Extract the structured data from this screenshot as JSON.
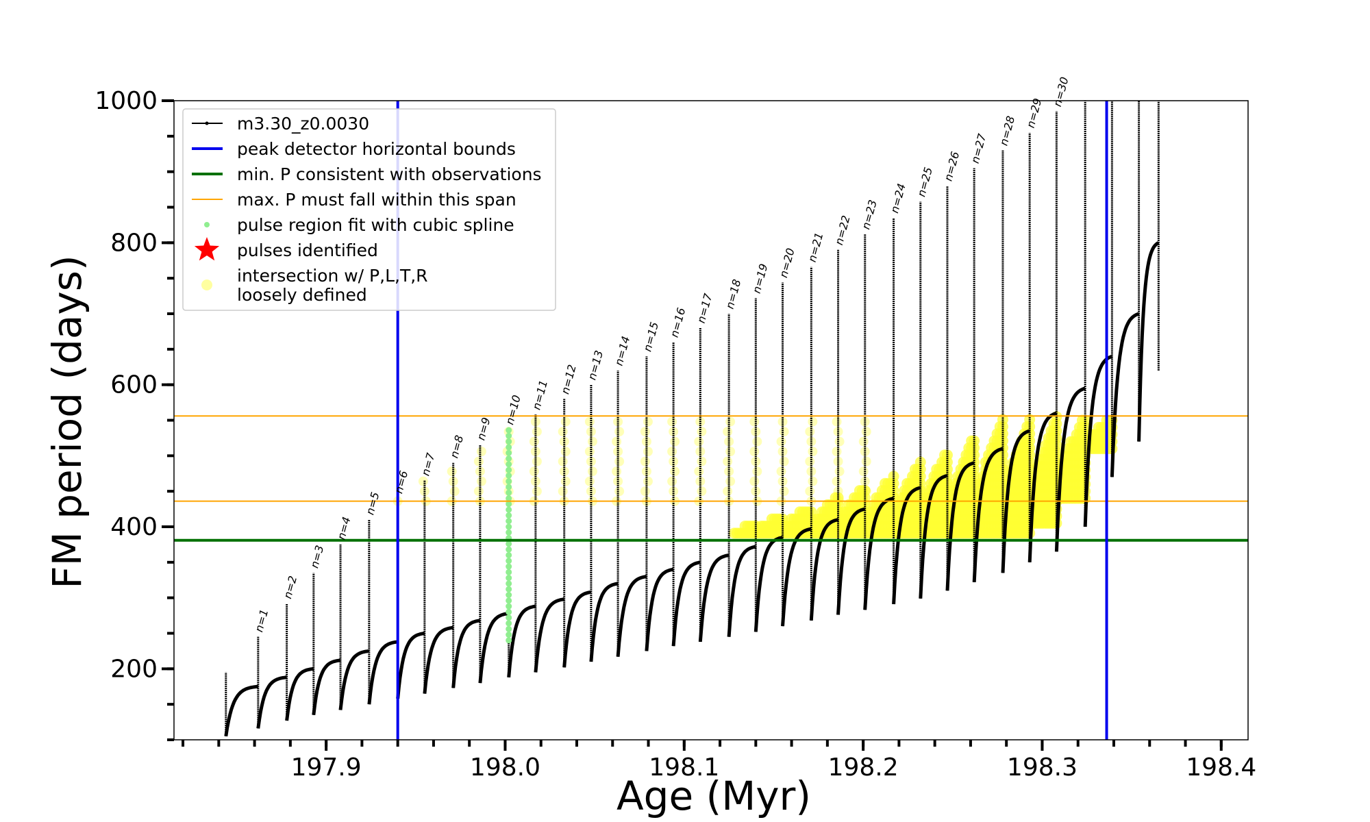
{
  "chart_data": {
    "type": "line",
    "xlabel": "Age (Myr)",
    "ylabel": "FM period (days)",
    "xlim": [
      197.815,
      198.415
    ],
    "ylim": [
      100,
      1000
    ],
    "x_ticks": [
      197.9,
      198.0,
      198.1,
      198.2,
      198.3,
      198.4
    ],
    "x_tick_labels": [
      "197.9",
      "198.0",
      "198.1",
      "198.2",
      "198.3",
      "198.4"
    ],
    "y_ticks": [
      200,
      400,
      600,
      800,
      1000
    ],
    "y_tick_labels": [
      "200",
      "400",
      "600",
      "800",
      "1000"
    ],
    "grid": false,
    "legend_position": "upper-left",
    "legend": [
      {
        "label": "m3.30_z0.0030",
        "color": "#000000",
        "marker": "line-dot"
      },
      {
        "label": "peak detector horizontal bounds",
        "color": "#0000ee",
        "marker": "line"
      },
      {
        "label": "min. P consistent with observations",
        "color": "#007000",
        "marker": "line"
      },
      {
        "label": "max. P must fall within this span",
        "color": "#ffa500",
        "marker": "line"
      },
      {
        "label": "pulse region fit with cubic spline",
        "color": "#90ee90",
        "marker": "dot"
      },
      {
        "label": "pulses identified",
        "color": "#ff0000",
        "marker": "star"
      },
      {
        "label": "intersection w/ P,L,T,R",
        "label_line2": "loosely defined",
        "color": "#ffffa0",
        "marker": "dot"
      }
    ],
    "vertical_bounds": [
      197.94,
      198.336
    ],
    "min_period": 381,
    "max_period_span": [
      436,
      556
    ],
    "spline_region_age": 198.002,
    "pulse_labels": [
      "n=1",
      "n=2",
      "n=3",
      "n=4",
      "n=5",
      "n=6",
      "n=7",
      "n=8",
      "n=9",
      "n=10",
      "n=11",
      "n=12",
      "n=13",
      "n=14",
      "n=15",
      "n=16",
      "n=17",
      "n=18",
      "n=19",
      "n=20",
      "n=21",
      "n=22",
      "n=23",
      "n=24",
      "n=25",
      "n=26",
      "n=27",
      "n=28",
      "n=29",
      "n=30"
    ],
    "series": [
      {
        "name": "m3.30_z0.0030",
        "pulse_ages": [
          197.844,
          197.862,
          197.878,
          197.893,
          197.908,
          197.924,
          197.94,
          197.955,
          197.971,
          197.986,
          198.002,
          198.017,
          198.033,
          198.048,
          198.063,
          198.079,
          198.094,
          198.109,
          198.125,
          198.14,
          198.155,
          198.171,
          198.186,
          198.201,
          198.217,
          198.232,
          198.247,
          198.262,
          198.278,
          198.293,
          198.308,
          198.324,
          198.339,
          198.354,
          198.365
        ],
        "pulse_peaks": [
          195,
          245,
          292,
          335,
          375,
          410,
          440,
          465,
          490,
          515,
          537,
          558,
          580,
          600,
          620,
          640,
          660,
          680,
          700,
          722,
          744,
          766,
          790,
          812,
          835,
          858,
          880,
          905,
          930,
          955,
          985,
          1000,
          1000,
          1000,
          1000
        ],
        "interpulse_min": [
          105,
          116,
          127,
          135,
          142,
          150,
          158,
          165,
          173,
          180,
          188,
          195,
          202,
          210,
          217,
          225,
          232,
          238,
          245,
          252,
          260,
          268,
          276,
          283,
          291,
          299,
          310,
          322,
          335,
          350,
          365,
          400,
          470,
          520,
          620
        ],
        "interpulse_max": [
          175,
          188,
          200,
          212,
          225,
          238,
          250,
          258,
          268,
          278,
          288,
          298,
          308,
          320,
          330,
          340,
          350,
          360,
          372,
          385,
          397,
          410,
          425,
          440,
          455,
          472,
          490,
          510,
          535,
          560,
          595,
          640,
          700,
          800,
          1000
        ]
      }
    ]
  }
}
